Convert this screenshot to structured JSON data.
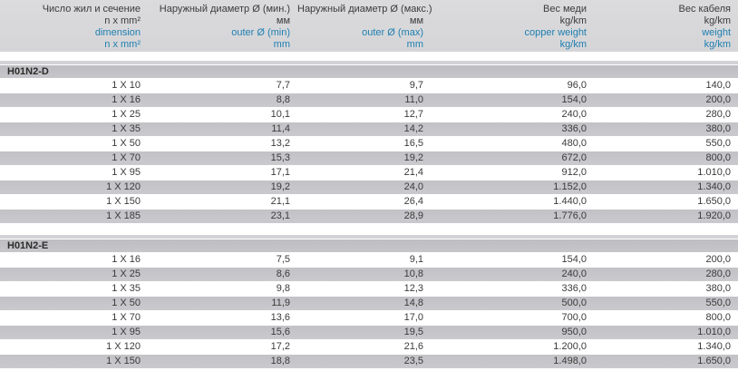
{
  "colors": {
    "header_bg": "#d8d8db",
    "row_alt_bg": "#c6c6ca",
    "section_bar_bg": "#c0c0c4",
    "accent_blue": "#1f7fb0",
    "text": "#3b3b3b"
  },
  "header": {
    "columns": [
      {
        "ru": "Число жил и сечение",
        "ru_unit": "n x mm²",
        "en": "dimension",
        "en_unit": "n x mm²"
      },
      {
        "ru": "Наружный диаметр Ø (мин.)",
        "ru_unit": "мм",
        "en": "outer Ø (min)",
        "en_unit": "mm"
      },
      {
        "ru": "Наружный диаметр Ø (макс.)",
        "ru_unit": "мм",
        "en": "outer Ø (max)",
        "en_unit": "mm"
      },
      {
        "ru": "Вес меди",
        "ru_unit": "kg/km",
        "en": "copper weight",
        "en_unit": "kg/km"
      },
      {
        "ru": "Вес кабеля",
        "ru_unit": "kg/km",
        "en": "weight",
        "en_unit": "kg/km"
      }
    ]
  },
  "sections": [
    {
      "title": "H01N2-D",
      "rows": [
        [
          "1 X 10",
          "7,7",
          "9,7",
          "96,0",
          "140,0"
        ],
        [
          "1 X 16",
          "8,8",
          "11,0",
          "154,0",
          "200,0"
        ],
        [
          "1 X 25",
          "10,1",
          "12,7",
          "240,0",
          "280,0"
        ],
        [
          "1 X 35",
          "11,4",
          "14,2",
          "336,0",
          "380,0"
        ],
        [
          "1 X 50",
          "13,2",
          "16,5",
          "480,0",
          "550,0"
        ],
        [
          "1 X 70",
          "15,3",
          "19,2",
          "672,0",
          "800,0"
        ],
        [
          "1 X 95",
          "17,1",
          "21,4",
          "912,0",
          "1.010,0"
        ],
        [
          "1 X 120",
          "19,2",
          "24,0",
          "1.152,0",
          "1.340,0"
        ],
        [
          "1 X 150",
          "21,1",
          "26,4",
          "1.440,0",
          "1.650,0"
        ],
        [
          "1 X 185",
          "23,1",
          "28,9",
          "1.776,0",
          "1.920,0"
        ]
      ]
    },
    {
      "title": "H01N2-E",
      "rows": [
        [
          "1 X 16",
          "7,5",
          "9,1",
          "154,0",
          "200,0"
        ],
        [
          "1 X 25",
          "8,6",
          "10,8",
          "240,0",
          "280,0"
        ],
        [
          "1 X 35",
          "9,8",
          "12,3",
          "336,0",
          "380,0"
        ],
        [
          "1 X 50",
          "11,9",
          "14,8",
          "500,0",
          "550,0"
        ],
        [
          "1 X 70",
          "13,6",
          "17,0",
          "700,0",
          "800,0"
        ],
        [
          "1 X 95",
          "15,6",
          "19,5",
          "950,0",
          "1.010,0"
        ],
        [
          "1 X 120",
          "17,2",
          "21,6",
          "1.200,0",
          "1.340,0"
        ],
        [
          "1 X 150",
          "18,8",
          "23,5",
          "1.498,0",
          "1.650,0"
        ]
      ]
    }
  ]
}
